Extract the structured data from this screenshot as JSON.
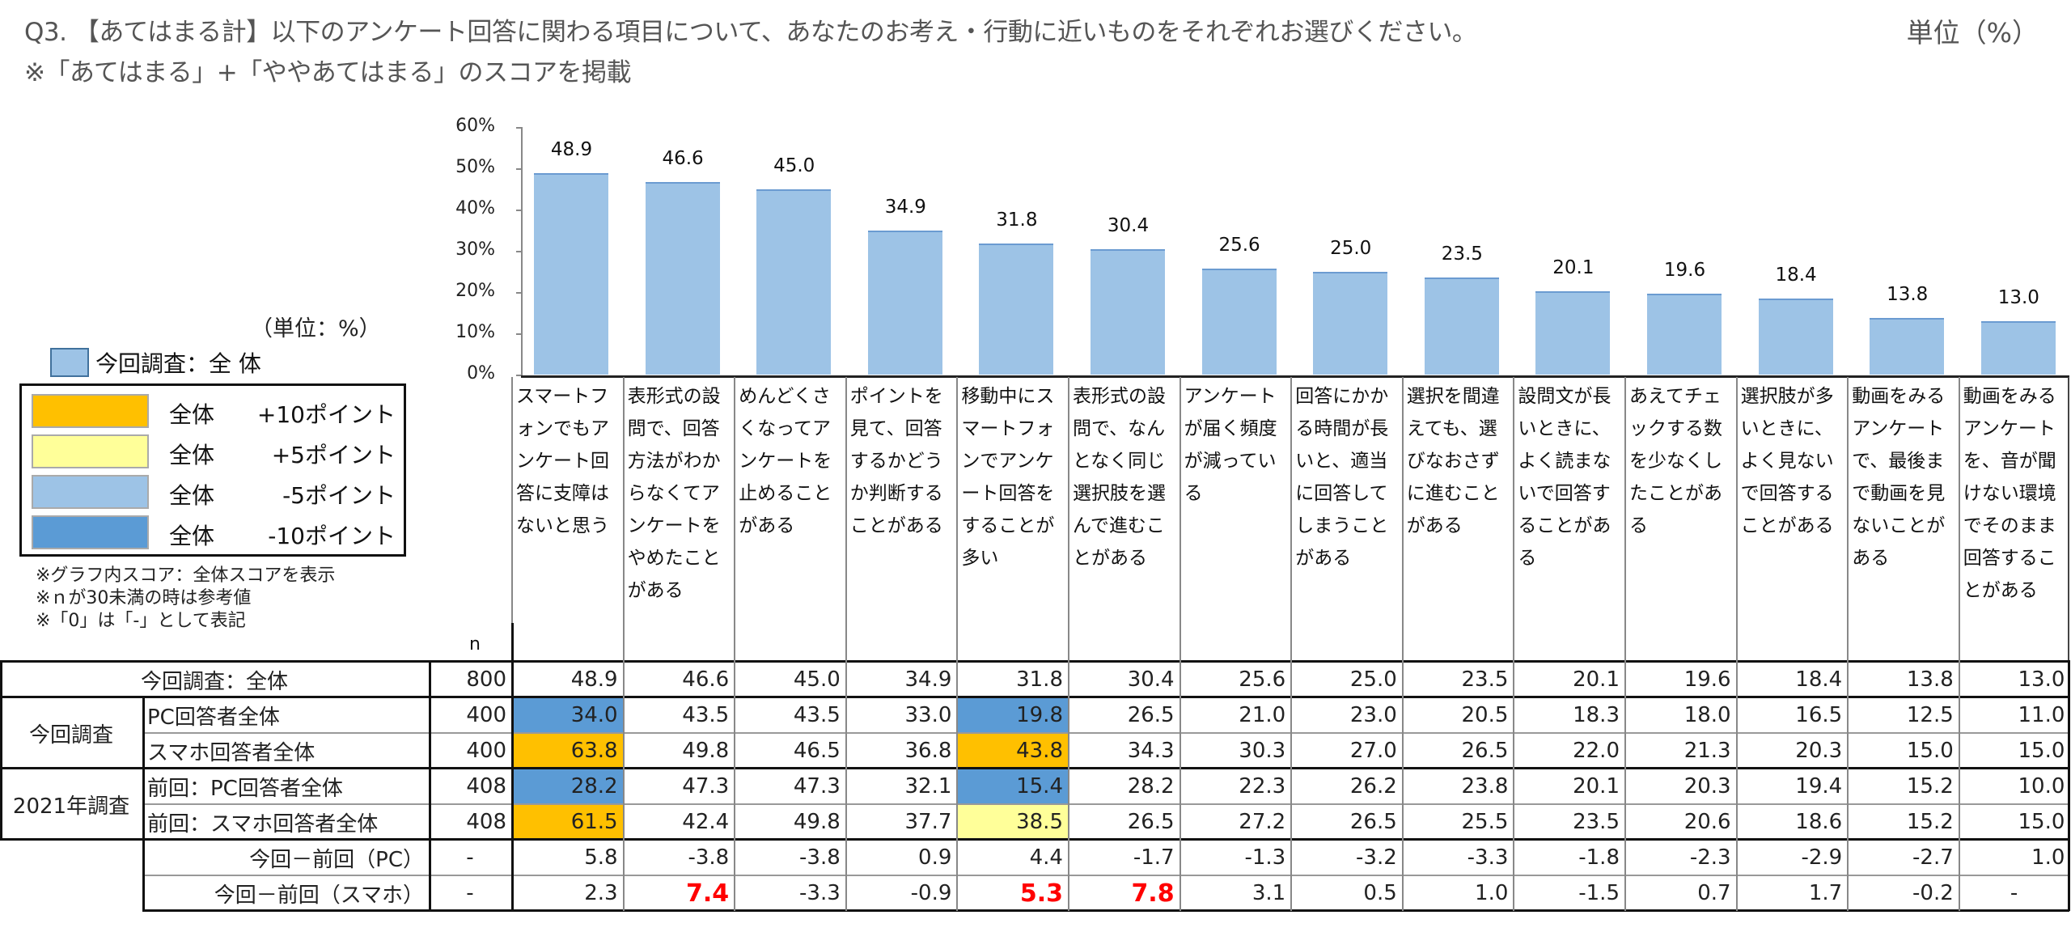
{
  "header": {
    "title": "Q3. 【あてはまる計】以下のアンケート回答に関わる項目について、あなたのお考え・行動に近いものをそれぞれお選びください。",
    "subtitle": "※「あてはまる」+「ややあてはまる」のスコアを掲載",
    "unit": "単位（%）"
  },
  "legend": {
    "unit": "（単位：%）",
    "series_label": "今回調査：全 体",
    "series_color": "#9dc3e6",
    "rows": [
      {
        "label": "全体",
        "points": "+10ポイント",
        "color": "#ffc000"
      },
      {
        "label": "全体",
        "points": "+5ポイント",
        "color": "#ffff99"
      },
      {
        "label": "全体",
        "points": "-5ポイント",
        "color": "#9dc3e6"
      },
      {
        "label": "全体",
        "points": "-10ポイント",
        "color": "#5b9bd5"
      }
    ],
    "notes": [
      "※グラフ内スコア：全体スコアを表示",
      "※ｎが30未満の時は参考値",
      "※「0」は「-」として表記"
    ]
  },
  "chart_data": {
    "type": "bar",
    "title": "Q3. 【あてはまる計】以下のアンケート回答に関わる項目について、あなたのお考え・行動に近いものをそれぞれお選びください。",
    "xlabel": "",
    "ylabel": "",
    "ylim": [
      0,
      60
    ],
    "yticks": [
      "0%",
      "10%",
      "20%",
      "30%",
      "40%",
      "50%",
      "60%"
    ],
    "legend": [
      "今回調査：全 体"
    ],
    "categories": [
      "スマートフォンでもアンケート回答に支障はないと思う",
      "表形式の設問で、回答方法がわからなくてアンケートをやめたことがある",
      "めんどくさくなってアンケートを止めることがある",
      "ポイントを見て、回答するかどうか判断することがある",
      "移動中にスマートフォンでアンケート回答をすることが多い",
      "表形式の設問で、なんとなく同じ選択肢を選んで進むことがある",
      "アンケートが届く頻度が減っている",
      "回答にかかる時間が長いと、適当に回答してしまうことがある",
      "選択を間違えても、選びなおさずに進むことがある",
      "設問文が長いときに、よく読まないで回答することがある",
      "あえてチェックする数を少なくしたことがある",
      "選択肢が多いときに、よく見ないで回答することがある",
      "動画をみるアンケートで、最後まで動画を見ないことがある",
      "動画をみるアンケートを、音が聞けない環境でそのまま回答することがある"
    ],
    "values": [
      48.9,
      46.6,
      45.0,
      34.9,
      31.8,
      30.4,
      25.6,
      25.0,
      23.5,
      20.1,
      19.6,
      18.4,
      13.8,
      13.0
    ]
  },
  "table": {
    "n_header": "n",
    "rows": [
      {
        "group": "",
        "label": "今回調査：全体",
        "n": "800",
        "values": [
          "48.9",
          "46.6",
          "45.0",
          "34.9",
          "31.8",
          "30.4",
          "25.6",
          "25.0",
          "23.5",
          "20.1",
          "19.6",
          "18.4",
          "13.8",
          "13.0"
        ],
        "highlights": {}
      },
      {
        "group": "今回調査",
        "label": "PC回答者全体",
        "n": "400",
        "values": [
          "34.0",
          "43.5",
          "43.5",
          "33.0",
          "19.8",
          "26.5",
          "21.0",
          "23.0",
          "20.5",
          "18.3",
          "18.0",
          "16.5",
          "12.5",
          "11.0"
        ],
        "highlights": {
          "0": "#5b9bd5",
          "4": "#5b9bd5"
        }
      },
      {
        "group": "今回調査",
        "label": "スマホ回答者全体",
        "n": "400",
        "values": [
          "63.8",
          "49.8",
          "46.5",
          "36.8",
          "43.8",
          "34.3",
          "30.3",
          "27.0",
          "26.5",
          "22.0",
          "21.3",
          "20.3",
          "15.0",
          "15.0"
        ],
        "highlights": {
          "0": "#ffc000",
          "4": "#ffc000"
        }
      },
      {
        "group": "2021年調査",
        "label": "前回：PC回答者全体",
        "n": "408",
        "values": [
          "28.2",
          "47.3",
          "47.3",
          "32.1",
          "15.4",
          "28.2",
          "22.3",
          "26.2",
          "23.8",
          "20.1",
          "20.3",
          "19.4",
          "15.2",
          "10.0"
        ],
        "highlights": {
          "0": "#5b9bd5",
          "4": "#5b9bd5"
        }
      },
      {
        "group": "2021年調査",
        "label": "前回：スマホ回答者全体",
        "n": "408",
        "values": [
          "61.5",
          "42.4",
          "49.8",
          "37.7",
          "38.5",
          "26.5",
          "27.2",
          "26.5",
          "25.5",
          "23.5",
          "20.6",
          "18.6",
          "15.2",
          "15.0"
        ],
        "highlights": {
          "0": "#ffc000",
          "4": "#ffff99"
        }
      },
      {
        "group": "",
        "label": "今回－前回（PC）",
        "n": "-",
        "values": [
          "5.8",
          "-3.8",
          "-3.8",
          "0.9",
          "4.4",
          "-1.7",
          "-1.3",
          "-3.2",
          "-3.3",
          "-1.8",
          "-2.3",
          "-2.9",
          "-2.7",
          "1.0"
        ],
        "red": []
      },
      {
        "group": "",
        "label": "今回－前回（スマホ）",
        "n": "-",
        "values": [
          "2.3",
          "7.4",
          "-3.3",
          "-0.9",
          "5.3",
          "7.8",
          "3.1",
          "0.5",
          "1.0",
          "-1.5",
          "0.7",
          "1.7",
          "-0.2",
          "-"
        ],
        "red": [
          1,
          4,
          5
        ]
      }
    ],
    "group_labels": {
      "current": "今回調査",
      "previous": "2021年調査"
    }
  }
}
